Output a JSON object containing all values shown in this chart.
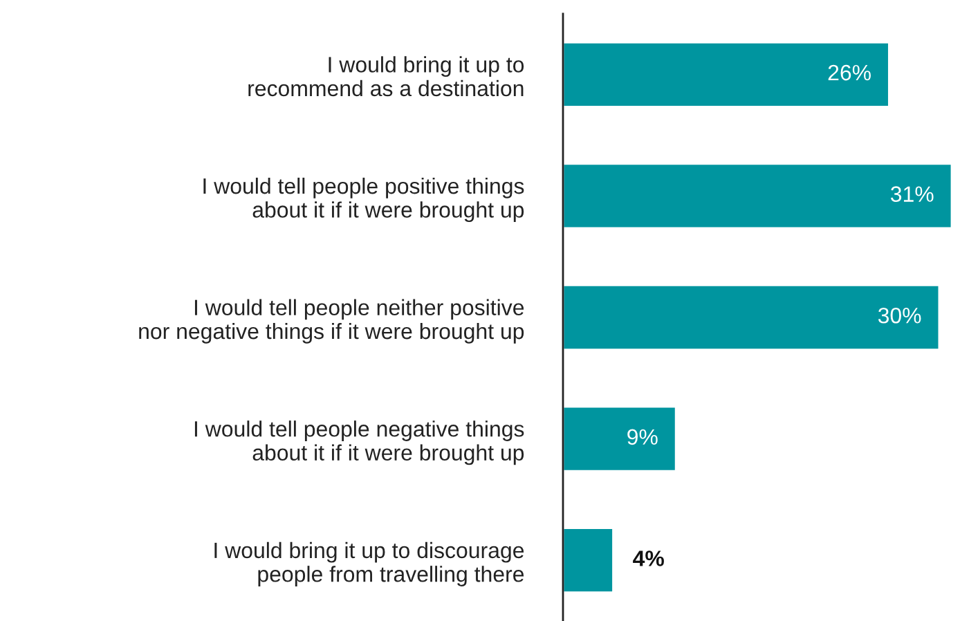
{
  "chart_data": {
    "type": "bar",
    "orientation": "horizontal",
    "categories": [
      "I would bring it up to\nrecommend as a destination",
      "I would tell people positive things\nabout it if it were brought up",
      "I would tell people neither positive\nnor negative things if it were brought up",
      "I would tell people negative things\nabout it if it were brought up",
      "I would bring it up to discourage\npeople from travelling there"
    ],
    "values": [
      26,
      31,
      30,
      9,
      4
    ],
    "value_labels": [
      "26%",
      "31%",
      "30%",
      "9%",
      "4%"
    ],
    "color": "#00959f",
    "xlim": [
      0,
      31
    ],
    "tick_labels": "y",
    "grid": false,
    "legend": false
  }
}
